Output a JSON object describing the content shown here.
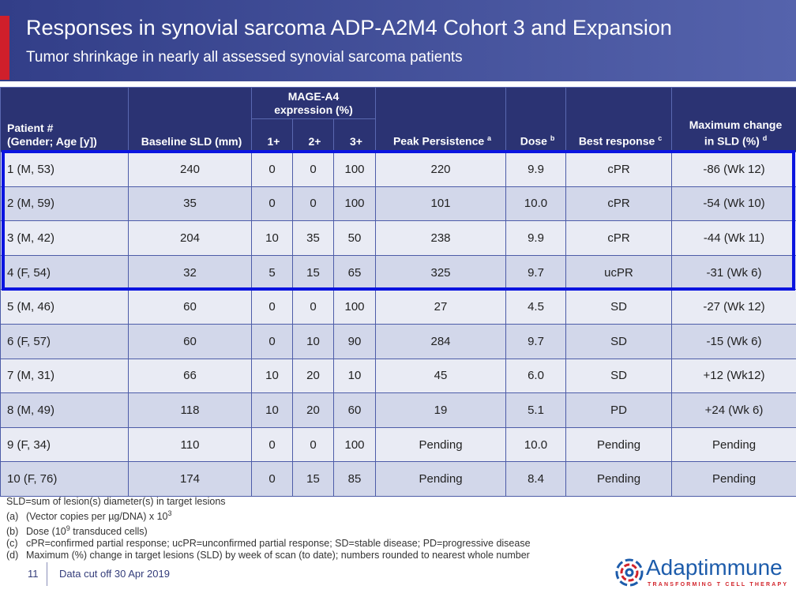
{
  "header": {
    "title": "Responses in synovial sarcoma ADP-A2M4 Cohort 3 and Expansion",
    "subtitle": "Tumor shrinkage in nearly all assessed synovial sarcoma patients"
  },
  "table": {
    "group": {
      "lines": [
        "MAGE-A4",
        "expression (%)"
      ]
    },
    "columns": [
      {
        "lines": [
          "Patient #",
          "(Gender; Age [y])"
        ]
      },
      {
        "lines": [
          "Baseline SLD (mm)"
        ]
      },
      {
        "lines": [
          "1+"
        ]
      },
      {
        "lines": [
          "2+"
        ]
      },
      {
        "lines": [
          "3+"
        ]
      },
      {
        "lines": [
          "Peak Persistence"
        ],
        "sup": "a"
      },
      {
        "lines": [
          "Dose"
        ],
        "sup": "b"
      },
      {
        "lines": [
          "Best response"
        ],
        "sup": "c"
      },
      {
        "lines": [
          "Maximum change",
          "in SLD (%)"
        ],
        "sup": "d"
      }
    ],
    "rows": [
      [
        "1 (M, 53)",
        "240",
        "0",
        "0",
        "100",
        "220",
        "9.9",
        "cPR",
        "-86 (Wk 12)"
      ],
      [
        "2 (M, 59)",
        "35",
        "0",
        "0",
        "100",
        "101",
        "10.0",
        "cPR",
        "-54 (Wk 10)"
      ],
      [
        "3 (M, 42)",
        "204",
        "10",
        "35",
        "50",
        "238",
        "9.9",
        "cPR",
        "-44 (Wk 11)"
      ],
      [
        "4 (F, 54)",
        "32",
        "5",
        "15",
        "65",
        "325",
        "9.7",
        "ucPR",
        "-31 (Wk 6)"
      ],
      [
        "5 (M, 46)",
        "60",
        "0",
        "0",
        "100",
        "27",
        "4.5",
        "SD",
        "-27 (Wk 12)"
      ],
      [
        "6 (F, 57)",
        "60",
        "0",
        "10",
        "90",
        "284",
        "9.7",
        "SD",
        "-15 (Wk 6)"
      ],
      [
        "7 (M, 31)",
        "66",
        "10",
        "20",
        "10",
        "45",
        "6.0",
        "SD",
        "+12 (Wk12)"
      ],
      [
        "8 (M, 49)",
        "118",
        "10",
        "20",
        "60",
        "19",
        "5.1",
        "PD",
        "+24 (Wk 6)"
      ],
      [
        "9 (F, 34)",
        "110",
        "0",
        "0",
        "100",
        "Pending",
        "10.0",
        "Pending",
        "Pending"
      ],
      [
        "10 (F, 76)",
        "174",
        "0",
        "15",
        "85",
        "Pending",
        "8.4",
        "Pending",
        "Pending"
      ]
    ]
  },
  "footnotes": [
    {
      "text": "SLD=sum of lesion(s) diameter(s) in target lesions"
    },
    {
      "label": "(a)",
      "text": "(Vector copies per µg/DNA) x 10",
      "sup": "3"
    },
    {
      "label": "(b)",
      "text": "Dose (10",
      "sup": "9",
      "tail": " transduced cells)"
    },
    {
      "label": "(c)",
      "text": "cPR=confirmed partial response; ucPR=unconfirmed partial response; SD=stable disease; PD=progressive disease"
    },
    {
      "label": "(d)",
      "text": "Maximum (%) change in target lesions (SLD) by week of scan (to date); numbers rounded to nearest whole number"
    }
  ],
  "footer": {
    "page": "11",
    "note": "Data cut off 30 Apr 2019",
    "logo": "Adaptimmune",
    "tagline": "TRANSFORMING T CELL THERAPY"
  }
}
